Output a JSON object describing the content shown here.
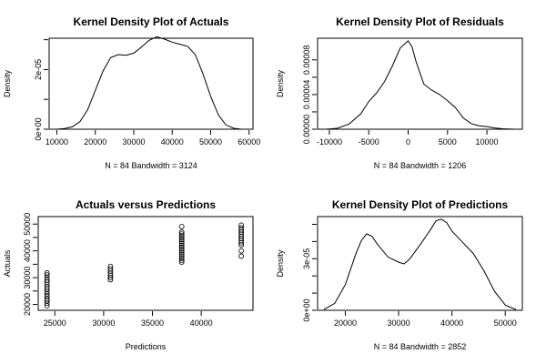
{
  "chart_data": [
    {
      "type": "line",
      "title": "Kernel Density Plot of Actuals",
      "xlabel": "N = 84   Bandwidth = 3124",
      "ylabel": "Density",
      "xlim": [
        8000,
        61000
      ],
      "ylim": [
        0,
        3.05e-05
      ],
      "xticks": [
        10000,
        20000,
        30000,
        40000,
        50000,
        60000
      ],
      "xtick_labels": [
        "10000",
        "20000",
        "30000",
        "40000",
        "50000",
        "60000"
      ],
      "yticks": [
        0,
        1e-05,
        2e-05,
        3e-05
      ],
      "ytick_labels": [
        "0e+00",
        "",
        "2e-05",
        ""
      ],
      "x": [
        10000,
        12000,
        14000,
        16000,
        18000,
        20000,
        22000,
        24000,
        26000,
        28000,
        30000,
        32000,
        34000,
        36000,
        38000,
        40000,
        42000,
        44000,
        46000,
        48000,
        50000,
        52000,
        54000,
        56000,
        58000
      ],
      "y": [
        0.0,
        2e-07,
        8e-07,
        2.5e-06,
        6.5e-06,
        1.3e-05,
        1.95e-05,
        2.4e-05,
        2.5e-05,
        2.48e-05,
        2.55e-05,
        2.75e-05,
        2.98e-05,
        3.1e-05,
        3.02e-05,
        2.92e-05,
        2.85e-05,
        2.78e-05,
        2.5e-05,
        1.85e-05,
        1.1e-05,
        4.8e-06,
        1.4e-06,
        3e-07,
        0.0
      ]
    },
    {
      "type": "line",
      "title": "Kernel Density Plot of Residuals",
      "xlabel": "N = 84   Bandwidth = 1206",
      "ylabel": "Density",
      "xlim": [
        -11500,
        14500
      ],
      "ylim": [
        0,
        0.000105
      ],
      "xticks": [
        -10000,
        -5000,
        0,
        5000,
        10000
      ],
      "xtick_labels": [
        "-10000",
        "-5000",
        "0",
        "5000",
        "10000"
      ],
      "yticks": [
        0,
        2e-05,
        4e-05,
        6e-05,
        8e-05
      ],
      "ytick_labels": [
        "0.00000",
        "",
        "0.00004",
        "",
        "0.00008"
      ],
      "x": [
        -10500,
        -9000,
        -7500,
        -6000,
        -5000,
        -4000,
        -3000,
        -2000,
        -1000,
        0,
        500,
        1000,
        2000,
        3000,
        4000,
        5000,
        6000,
        7000,
        8000,
        9000,
        10000,
        11000,
        12000,
        13500
      ],
      "y": [
        0.0,
        1e-06,
        6e-06,
        1.8e-05,
        3.2e-05,
        4.2e-05,
        5.5e-05,
        7.3e-05,
        9.4e-05,
        0.000102,
        9.5e-05,
        7.8e-05,
        5.2e-05,
        4.5e-05,
        4e-05,
        3.3e-05,
        2.5e-05,
        1.3e-05,
        6.5e-06,
        4e-06,
        3e-06,
        1.5e-06,
        5e-07,
        0.0
      ]
    },
    {
      "type": "scatter",
      "title": "Actuals versus Predictions",
      "xlabel": "Predictions",
      "ylabel": "Actuals",
      "xlim": [
        23300,
        45300
      ],
      "ylim": [
        17800,
        52800
      ],
      "xticks": [
        25000,
        30000,
        35000,
        40000
      ],
      "xtick_labels": [
        "25000",
        "30000",
        "35000",
        "40000"
      ],
      "yticks": [
        20000,
        25000,
        30000,
        35000,
        40000,
        45000,
        50000
      ],
      "ytick_labels": [
        "20000",
        "",
        "30000",
        "",
        "40000",
        "",
        "50000"
      ],
      "points": [
        [
          24200,
          19500
        ],
        [
          24200,
          20400
        ],
        [
          24200,
          21300
        ],
        [
          24200,
          22100
        ],
        [
          24200,
          23000
        ],
        [
          24200,
          23900
        ],
        [
          24200,
          24800
        ],
        [
          24200,
          25700
        ],
        [
          24200,
          26500
        ],
        [
          24200,
          27400
        ],
        [
          24200,
          28300
        ],
        [
          24200,
          29100
        ],
        [
          24200,
          30000
        ],
        [
          24200,
          31000
        ],
        [
          24200,
          31800
        ],
        [
          30700,
          29200
        ],
        [
          30700,
          30000
        ],
        [
          30700,
          30800
        ],
        [
          30700,
          31600
        ],
        [
          30700,
          32500
        ],
        [
          30700,
          33300
        ],
        [
          30700,
          34200
        ],
        [
          38000,
          35800
        ],
        [
          38000,
          36500
        ],
        [
          38000,
          37200
        ],
        [
          38000,
          37900
        ],
        [
          38000,
          38600
        ],
        [
          38000,
          39300
        ],
        [
          38000,
          40000
        ],
        [
          38000,
          40700
        ],
        [
          38000,
          41400
        ],
        [
          38000,
          42100
        ],
        [
          38000,
          42800
        ],
        [
          38000,
          43500
        ],
        [
          38000,
          44200
        ],
        [
          38000,
          44900
        ],
        [
          38000,
          45600
        ],
        [
          38000,
          46300
        ],
        [
          38000,
          47000
        ],
        [
          38000,
          49100
        ],
        [
          44100,
          38000
        ],
        [
          44100,
          40000
        ],
        [
          44100,
          42200
        ],
        [
          44100,
          43000
        ],
        [
          44100,
          43800
        ],
        [
          44100,
          44600
        ],
        [
          44100,
          45400
        ],
        [
          44100,
          46200
        ],
        [
          44100,
          47000
        ],
        [
          44100,
          47800
        ],
        [
          44100,
          48600
        ],
        [
          44100,
          49600
        ]
      ]
    },
    {
      "type": "line",
      "title": "Kernel Density Plot of Predictions",
      "xlabel": "N = 84   Bandwidth = 2852",
      "ylabel": "Density",
      "xlim": [
        14800,
        53200
      ],
      "ylim": [
        0,
        5.45e-05
      ],
      "xticks": [
        20000,
        30000,
        40000,
        50000
      ],
      "xtick_labels": [
        "20000",
        "30000",
        "40000",
        "50000"
      ],
      "yticks": [
        0,
        1e-05,
        2e-05,
        3e-05,
        4e-05,
        5e-05
      ],
      "ytick_labels": [
        "0e+00",
        "",
        "",
        "3e-05",
        "",
        ""
      ],
      "x": [
        16000,
        18000,
        20000,
        22000,
        23000,
        24000,
        25000,
        26000,
        28000,
        30000,
        31000,
        32000,
        34000,
        36000,
        37000,
        38000,
        39000,
        40000,
        42000,
        44000,
        46000,
        48000,
        50000,
        52000
      ],
      "y": [
        5e-07,
        4e-06,
        1.5e-05,
        3.3e-05,
        4.05e-05,
        4.45e-05,
        4.3e-05,
        3.85e-05,
        3.1e-05,
        2.8e-05,
        2.7e-05,
        2.95e-05,
        3.8e-05,
        4.7e-05,
        5.2e-05,
        5.3e-05,
        5.1e-05,
        4.6e-05,
        3.95e-05,
        3.3e-05,
        2.3e-05,
        1.1e-05,
        3e-06,
        5e-07
      ]
    }
  ]
}
